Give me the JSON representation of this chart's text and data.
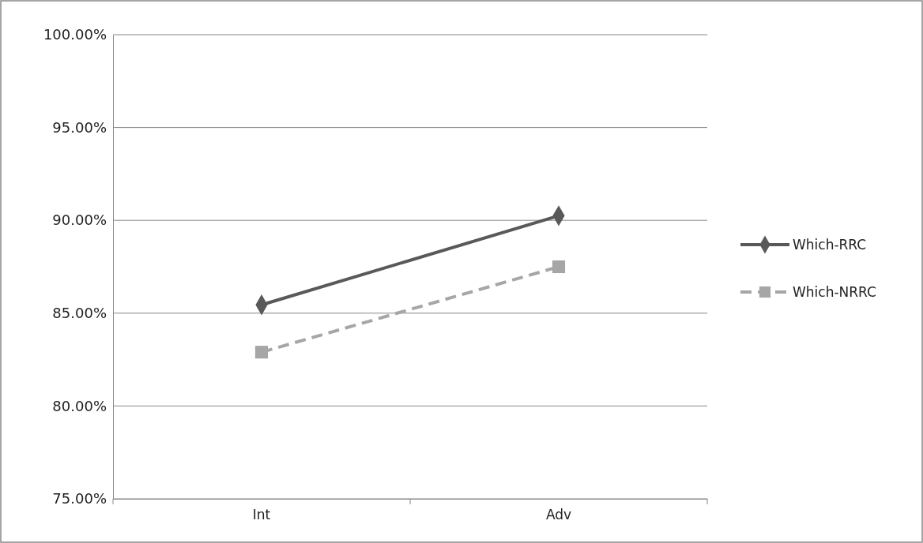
{
  "chart_data": {
    "type": "line",
    "categories": [
      "Int",
      "Adv"
    ],
    "series": [
      {
        "name": "Which-RRC",
        "color": "#595959",
        "values": [
          85.45,
          90.25
        ],
        "marker": "diamond",
        "line_style": "solid"
      },
      {
        "name": "Which-NRRC",
        "color": "#a6a6a6",
        "values": [
          82.9,
          87.5
        ],
        "marker": "square",
        "line_style": "dashed"
      }
    ],
    "ylim": [
      75,
      100
    ],
    "yticks": [
      {
        "value": 75,
        "label": "75.00%"
      },
      {
        "value": 80,
        "label": "80.00%"
      },
      {
        "value": 85,
        "label": "85.00%"
      },
      {
        "value": 90,
        "label": "90.00%"
      },
      {
        "value": 95,
        "label": "95.00%"
      },
      {
        "value": 100,
        "label": "100.00%"
      }
    ],
    "grid": "y",
    "legend": "right"
  }
}
